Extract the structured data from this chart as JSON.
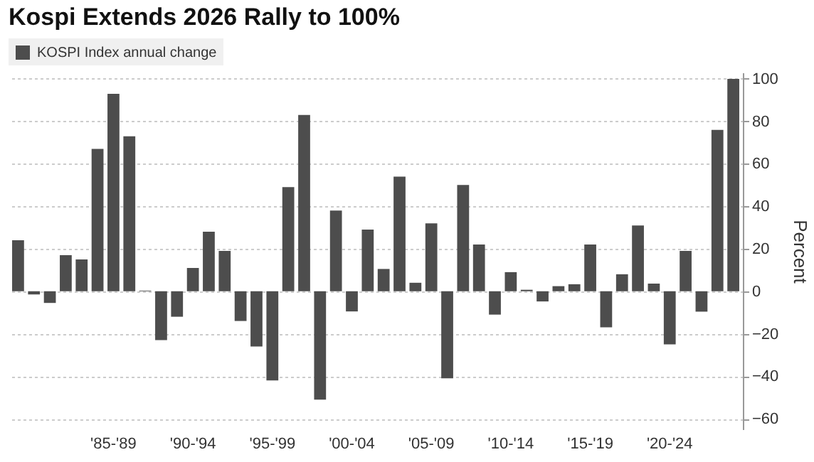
{
  "chart_data": {
    "type": "bar",
    "title": "Kospi Extends 2026 Rally to 100%",
    "ylabel": "Percent",
    "categories": [
      null,
      null,
      null,
      null,
      null,
      null,
      "'85-'89",
      null,
      null,
      null,
      null,
      "'90-'94",
      null,
      null,
      null,
      null,
      "'95-'99",
      null,
      null,
      null,
      null,
      "'00-'04",
      null,
      null,
      null,
      null,
      "'05-'09",
      null,
      null,
      null,
      null,
      "'10-'14",
      null,
      null,
      null,
      null,
      "'15-'19",
      null,
      null,
      null,
      null,
      "'20-'24",
      null,
      null,
      null,
      null
    ],
    "series": [
      {
        "name": "KOSPI Index annual change",
        "color": "#4d4d4d",
        "values": [
          24,
          -1.5,
          -5.5,
          17,
          15,
          67,
          93,
          73,
          0.3,
          -23,
          -12,
          11,
          28,
          19,
          -14,
          -26,
          -42,
          49,
          83,
          -51,
          38,
          -9.5,
          29,
          10.5,
          54,
          4,
          32,
          -41,
          50,
          22,
          -11,
          9,
          0.7,
          -4.8,
          2.4,
          3.3,
          22,
          -17,
          8,
          31,
          3.6,
          -25,
          19,
          -9.6,
          76,
          100
        ]
      }
    ],
    "ylim": [
      -65,
      103
    ],
    "yticks": [
      -60,
      -40,
      -20,
      0,
      20,
      40,
      60,
      80,
      100
    ],
    "grid": "y",
    "legend": "top left"
  }
}
